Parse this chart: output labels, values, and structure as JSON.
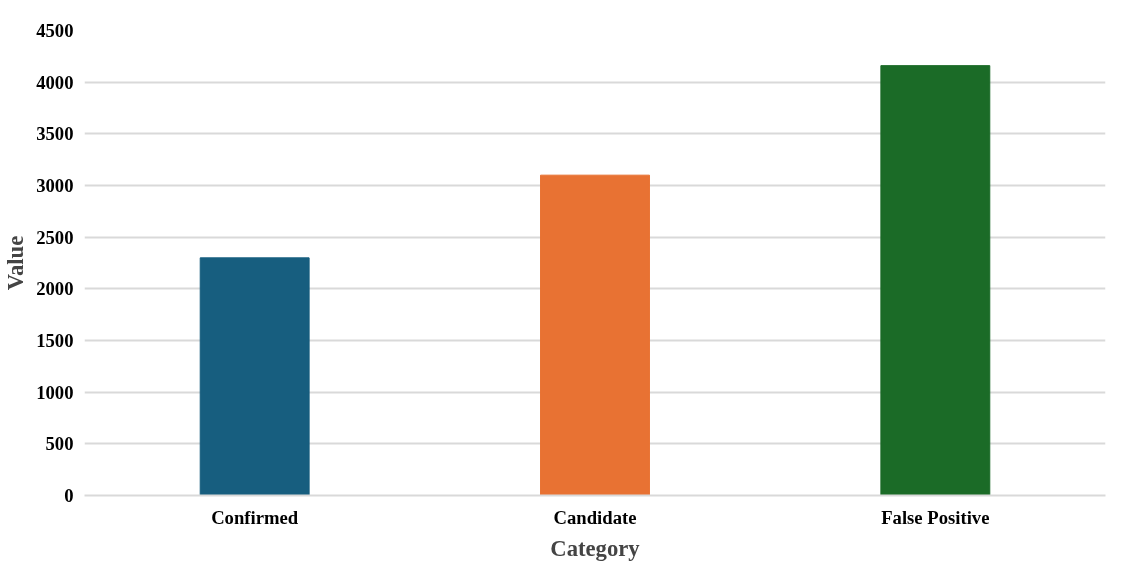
{
  "chart_data": {
    "type": "bar",
    "xlabel": "Category",
    "ylabel": "Value",
    "categories": [
      "Confirmed",
      "Candidate",
      "False Positive"
    ],
    "values": [
      2300,
      3100,
      4160
    ],
    "colors": [
      "#175e7f",
      "#e87233",
      "#1b6b27"
    ],
    "ylim": [
      0,
      4500
    ],
    "yticks": [
      0,
      500,
      1000,
      1500,
      2000,
      2500,
      3000,
      3500,
      4000,
      4500
    ],
    "grid": "y"
  }
}
